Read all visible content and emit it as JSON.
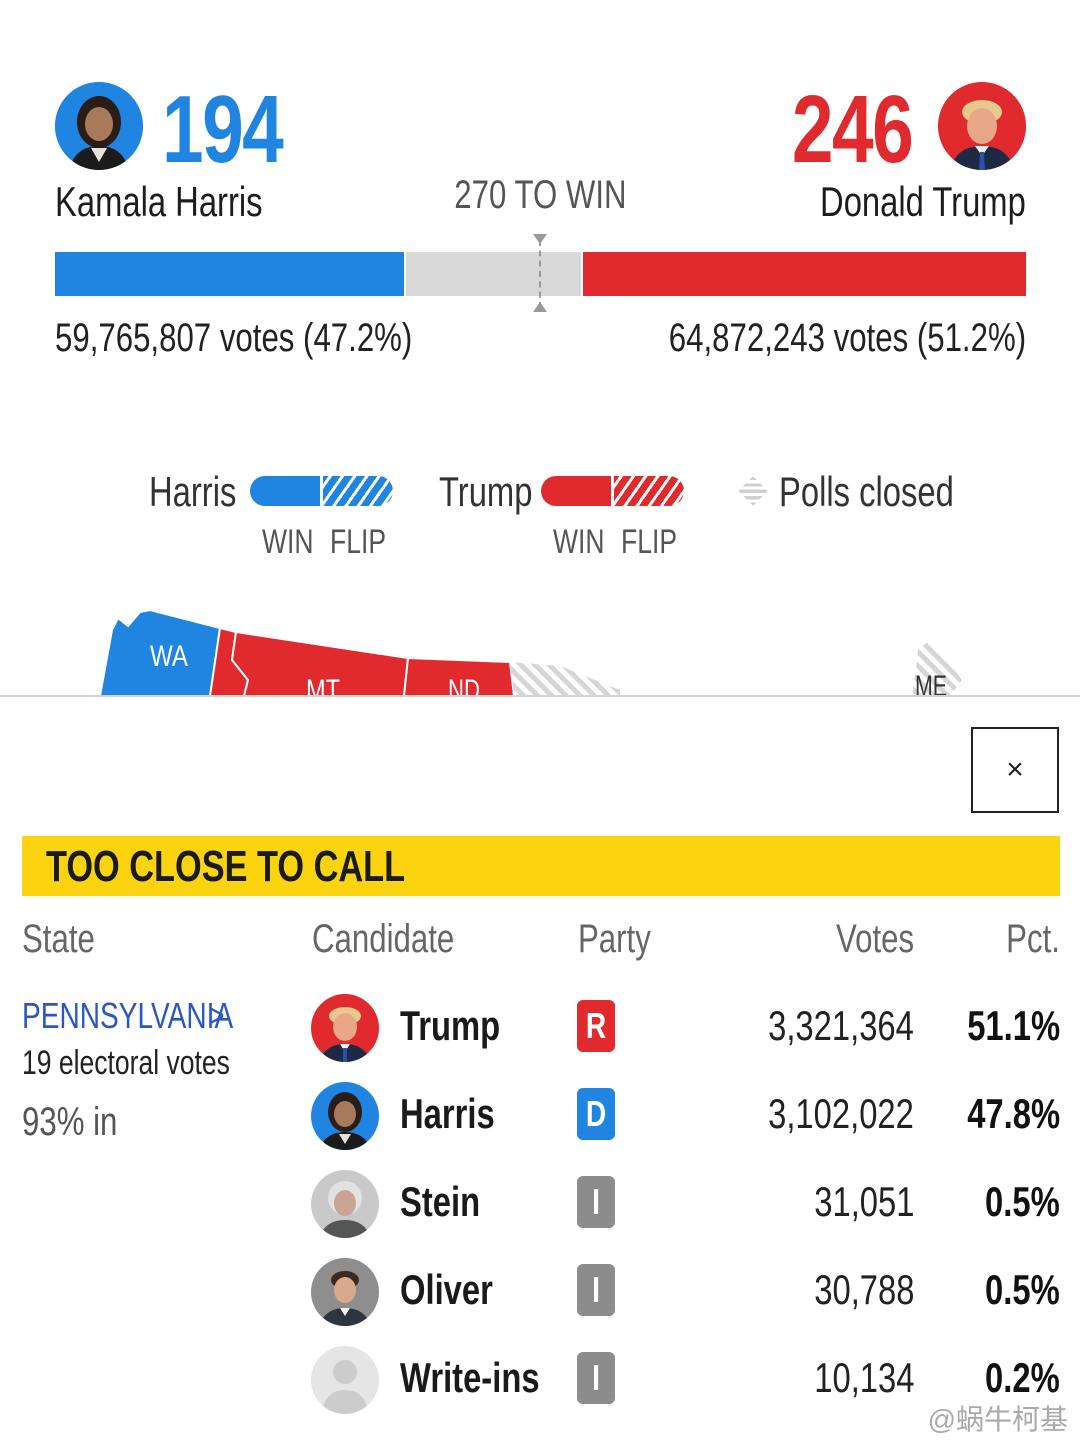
{
  "scoreboard": {
    "harris": {
      "name": "Kamala Harris",
      "electoral_votes": "194",
      "popular_vote": "59,765,807 votes (47.2%)",
      "color": "#1f85e0"
    },
    "trump": {
      "name": "Donald Trump",
      "electoral_votes": "246",
      "popular_vote": "64,872,243 votes (51.2%)",
      "color": "#e12a2e"
    },
    "to_win_label": "270 TO WIN",
    "remaining_color": "#d9d9d9",
    "bar": {
      "harris_ev": 194,
      "trump_ev": 246,
      "total_ev": 538,
      "threshold": 270
    }
  },
  "legend": {
    "harris_label": "Harris",
    "trump_label": "Trump",
    "polls_closed_label": "Polls closed",
    "win_label": "WIN",
    "flip_label": "FLIP"
  },
  "map": {
    "states": [
      "WA",
      "MT",
      "ND",
      "ME"
    ]
  },
  "panel": {
    "close_label": "×",
    "status_banner": "TOO CLOSE TO CALL",
    "banner_color": "#fbd30f",
    "columns": {
      "state": "State",
      "candidate": "Candidate",
      "party": "Party",
      "votes": "Votes",
      "pct": "Pct."
    },
    "state": {
      "name": "PENNSYLVANIA",
      "chevron": ">",
      "electoral_votes": "19 electoral votes",
      "reporting": "93% in"
    },
    "rows": [
      {
        "candidate": "Trump",
        "party": "R",
        "party_color": "#e12a2e",
        "votes": "3,321,364",
        "pct": "51.1%"
      },
      {
        "candidate": "Harris",
        "party": "D",
        "party_color": "#1f85e0",
        "votes": "3,102,022",
        "pct": "47.8%"
      },
      {
        "candidate": "Stein",
        "party": "I",
        "party_color": "#8c8c8c",
        "votes": "31,051",
        "pct": "0.5%"
      },
      {
        "candidate": "Oliver",
        "party": "I",
        "party_color": "#8c8c8c",
        "votes": "30,788",
        "pct": "0.5%"
      },
      {
        "candidate": "Write-ins",
        "party": "I",
        "party_color": "#8c8c8c",
        "votes": "10,134",
        "pct": "0.2%"
      }
    ]
  },
  "watermark": "@蜗牛柯基"
}
